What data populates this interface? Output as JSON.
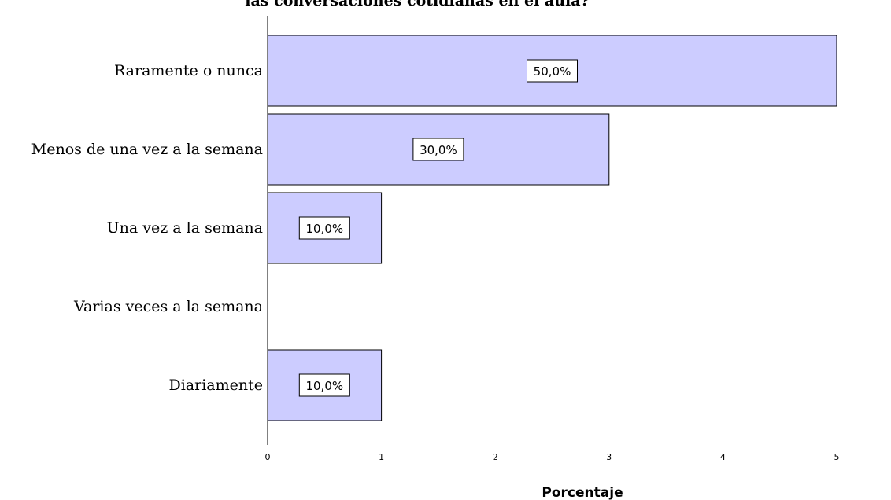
{
  "chart_data": {
    "type": "bar",
    "orientation": "horizontal",
    "title": "las conversaciones cotidianas en el aula?",
    "xlabel": "Porcentaje",
    "ylabel": "",
    "categories": [
      "Raramente o nunca",
      "Menos de una vez a la semana",
      "Una vez a la semana",
      "Varias veces a la semana",
      "Diariamente"
    ],
    "values": [
      5,
      3,
      1,
      0,
      1
    ],
    "data_labels": [
      "50,0%",
      "30,0%",
      "10,0%",
      "",
      "10,0%"
    ],
    "xlim": [
      0,
      5.5
    ],
    "xticks": [
      "0",
      "1",
      "2",
      "3",
      "4",
      "5"
    ],
    "grid": false,
    "legend": "none",
    "bar_color": "#ccccff",
    "bar_edge_color": "#000000"
  }
}
